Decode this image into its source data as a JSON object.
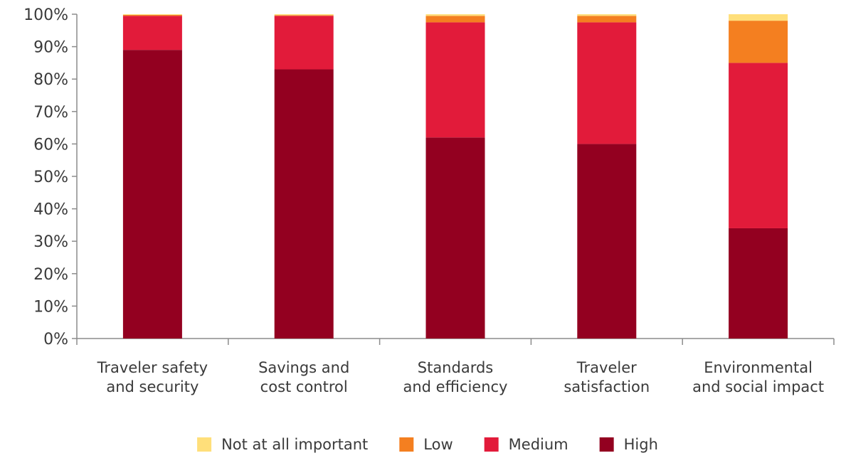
{
  "chart_data": {
    "type": "bar",
    "stacked": true,
    "title": "",
    "xlabel": "",
    "ylabel": "",
    "ylim": [
      0,
      100
    ],
    "y_ticks": [
      "0%",
      "10%",
      "20%",
      "30%",
      "40%",
      "50%",
      "60%",
      "70%",
      "80%",
      "90%",
      "100%"
    ],
    "grid": false,
    "legend_position": "bottom",
    "categories": [
      [
        "Traveler safety",
        "and security"
      ],
      [
        "Savings and",
        "cost control"
      ],
      [
        "Standards",
        "and efficiency"
      ],
      [
        "Traveler",
        "satisfaction"
      ],
      [
        "Environmental",
        "and social impact"
      ]
    ],
    "series": [
      {
        "name": "High",
        "color": "#930020",
        "values": [
          89,
          83,
          62,
          60,
          34
        ]
      },
      {
        "name": "Medium",
        "color": "#e21b3a",
        "values": [
          10.5,
          16.5,
          35.5,
          37.5,
          51
        ]
      },
      {
        "name": "Low",
        "color": "#f47f20",
        "values": [
          0.3,
          0.2,
          2,
          2,
          13
        ]
      },
      {
        "name": "Not at all important",
        "color": "#ffdf7a",
        "values": [
          0.2,
          0.3,
          0.5,
          0.5,
          2
        ]
      }
    ],
    "legend_order": [
      "Not at all important",
      "Low",
      "Medium",
      "High"
    ]
  }
}
